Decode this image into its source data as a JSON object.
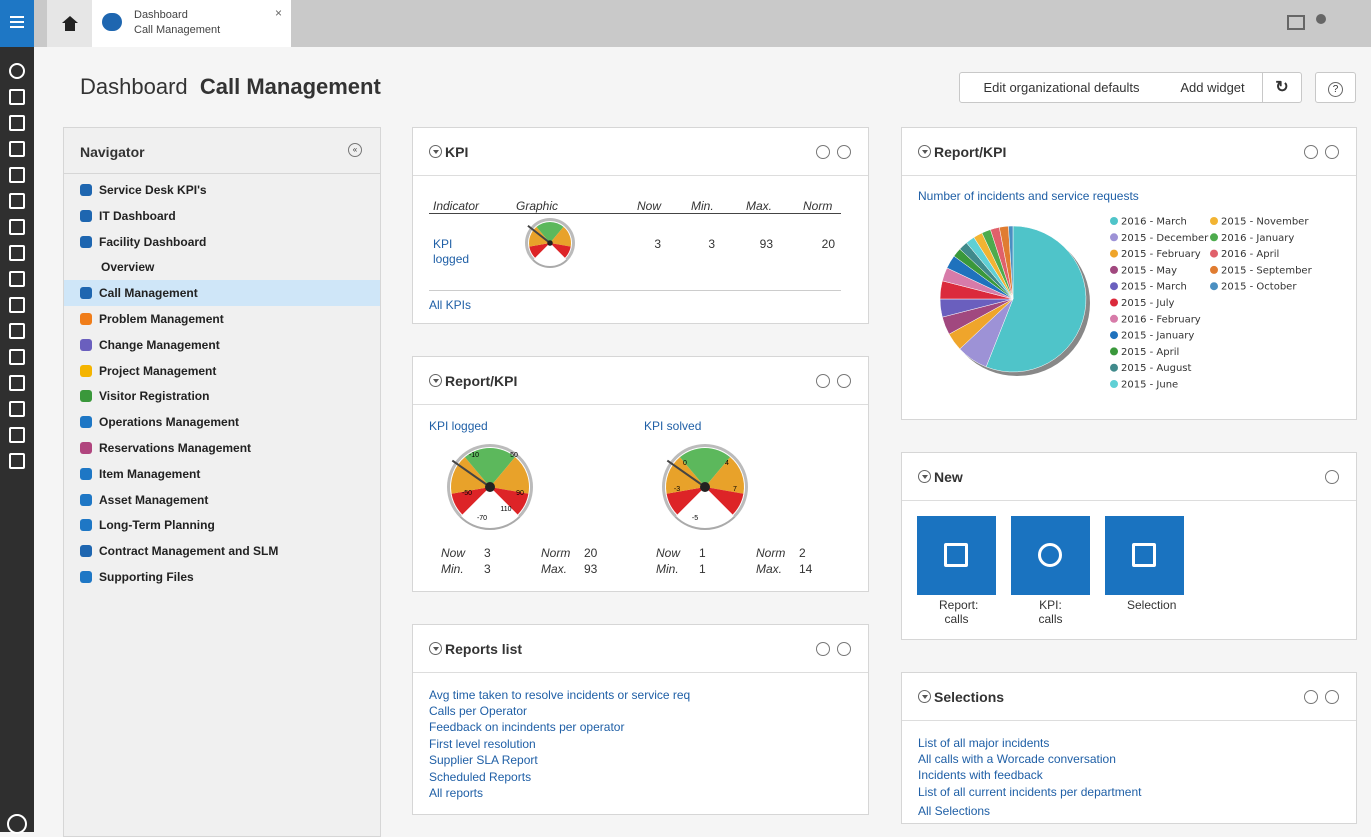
{
  "tab": {
    "title": "Dashboard",
    "subtitle": "Call Management"
  },
  "header": {
    "title": "Dashboard",
    "subtitle": "Call Management",
    "buttons": [
      "Edit organizational defaults",
      "Add widget"
    ]
  },
  "navigator": {
    "title": "Navigator",
    "items": [
      "Service Desk KPI's",
      "IT Dashboard",
      "Facility Dashboard",
      "Overview",
      "Call Management",
      "Problem Management",
      "Change Management",
      "Project Management",
      "Visitor Registration",
      "Operations Management",
      "Reservations Management",
      "Item Management",
      "Asset Management",
      "Long-Term Planning",
      "Contract Management and SLM",
      "Supporting Files"
    ]
  },
  "kpi": {
    "title": "KPI",
    "columns": [
      "Indicator",
      "Graphic",
      "Now",
      "Min.",
      "Max.",
      "Norm"
    ],
    "row": {
      "indicator": "KPI logged",
      "now": 3,
      "min": 3,
      "max": 93,
      "norm": 20
    },
    "link": "All KPIs"
  },
  "gauges": {
    "title": "Report/KPI",
    "labels": {
      "now": "Now",
      "norm": "Norm",
      "min": "Min.",
      "max": "Max."
    },
    "items": [
      {
        "name": "KPI logged",
        "scale": [
          -10,
          50,
          -50,
          90,
          -70,
          110
        ],
        "now": 3,
        "norm": 20,
        "min": 3,
        "max": 93
      },
      {
        "name": "KPI solved",
        "scale": [
          0,
          4,
          -3,
          7,
          -5
        ],
        "now": 1,
        "norm": 2,
        "min": 1,
        "max": 14
      }
    ]
  },
  "reports": {
    "title": "Reports list",
    "items": [
      "Avg time taken to resolve incidents or service req",
      "Calls per Operator",
      "Feedback on incindents per operator",
      "First level resolution",
      "Supplier SLA Report"
    ],
    "links": [
      "Scheduled Reports",
      "All reports"
    ]
  },
  "pie_widget": {
    "title": "Report/KPI",
    "chart": {
      "type": "pie",
      "title": "Number of incidents and service requests",
      "categories": [
        "2016 - March",
        "2015 - December",
        "2015 - February",
        "2015 - May",
        "2015 - March",
        "2015 - July",
        "2016 - February",
        "2015 - January",
        "2015 - April",
        "2015 - August",
        "2015 - June",
        "2015 - November",
        "2016 - January",
        "2016 - April",
        "2015 - September",
        "2015 - October"
      ],
      "values": [
        56,
        7,
        4,
        4,
        4,
        4,
        3,
        3,
        2,
        2,
        2,
        2,
        2,
        2,
        2,
        1
      ],
      "colors": [
        "#4fc4c9",
        "#9d92d6",
        "#efa52b",
        "#a1487f",
        "#6a5fbe",
        "#db2a3c",
        "#d77ba9",
        "#1f72bd",
        "#3a983b",
        "#408a8b",
        "#5fd0d5",
        "#f2b433",
        "#4dab4d",
        "#e0616b",
        "#e07c31",
        "#4a8fc1"
      ]
    }
  },
  "new_widget": {
    "title": "New",
    "tiles": [
      "Report: calls",
      "KPI: calls",
      "Selection"
    ]
  },
  "selections": {
    "title": "Selections",
    "items": [
      "List of all major incidents",
      "All calls with a Worcade conversation",
      "Incidents with feedback",
      "List of all current incidents per department"
    ],
    "link": "All Selections"
  }
}
